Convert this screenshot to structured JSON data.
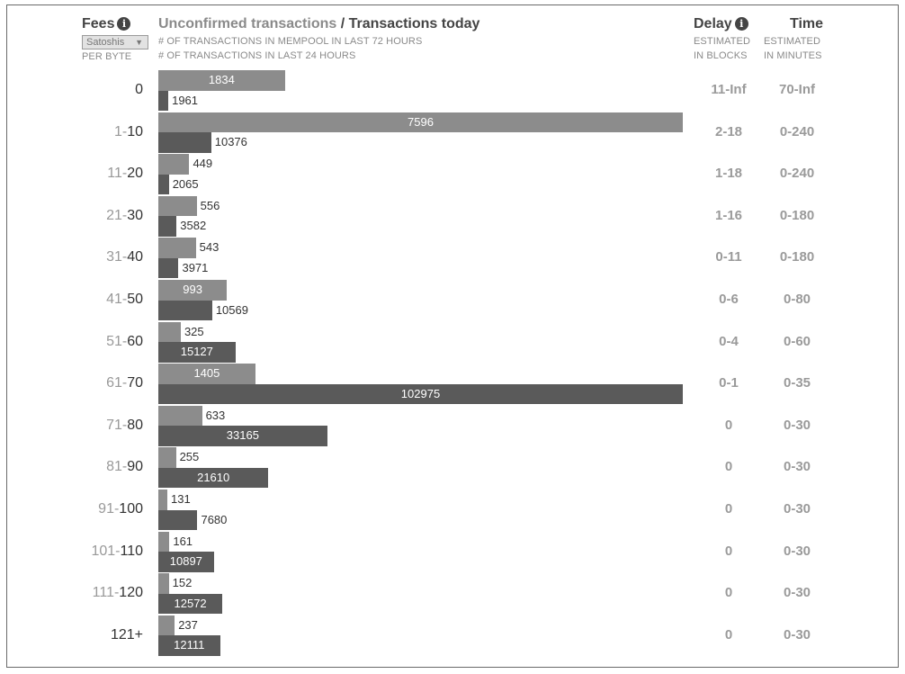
{
  "header": {
    "fees_title": "Fees",
    "unit_select": "Satoshis",
    "fees_sub": "PER BYTE",
    "unconfirmed_title": "Unconfirmed transactions",
    "separator": " / ",
    "today_title": "Transactions today",
    "sub1": "# OF TRANSACTIONS IN MEMPOOL IN LAST 72 HOURS",
    "sub2": "# OF TRANSACTIONS IN LAST 24 HOURS",
    "delay_title": "Delay",
    "delay_sub1": "ESTIMATED",
    "delay_sub2": "IN BLOCKS",
    "time_title": "Time",
    "time_sub1": "ESTIMATED",
    "time_sub2": "IN MINUTES"
  },
  "icons": {
    "fees_info": "info-icon",
    "delay_info": "info-icon",
    "unit_select": "chevron-down-icon"
  },
  "colors": {
    "unconfirmed_bar": "#8c8c8c",
    "today_bar": "#5a5a5a"
  },
  "chart_data": {
    "type": "bar",
    "orientation": "horizontal",
    "categories": [
      "0",
      "1-10",
      "11-20",
      "21-30",
      "31-40",
      "41-50",
      "51-60",
      "61-70",
      "71-80",
      "81-90",
      "91-100",
      "101-110",
      "111-120",
      "121+"
    ],
    "series": [
      {
        "name": "Unconfirmed transactions",
        "values": [
          1834,
          7596,
          449,
          556,
          543,
          993,
          325,
          1405,
          633,
          255,
          131,
          161,
          152,
          237
        ]
      },
      {
        "name": "Transactions today",
        "values": [
          1961,
          10376,
          2065,
          3582,
          3971,
          10569,
          15127,
          102975,
          33165,
          21610,
          7680,
          10897,
          12572,
          12111
        ]
      }
    ],
    "delay": [
      "11-Inf",
      "2-18",
      "1-18",
      "1-16",
      "0-11",
      "0-6",
      "0-4",
      "0-1",
      "0",
      "0",
      "0",
      "0",
      "0",
      "0"
    ],
    "time": [
      "70-Inf",
      "0-240",
      "0-240",
      "0-180",
      "0-180",
      "0-80",
      "0-60",
      "0-35",
      "0-30",
      "0-30",
      "0-30",
      "0-30",
      "0-30",
      "0-30"
    ],
    "grid": false,
    "legend": "none"
  }
}
